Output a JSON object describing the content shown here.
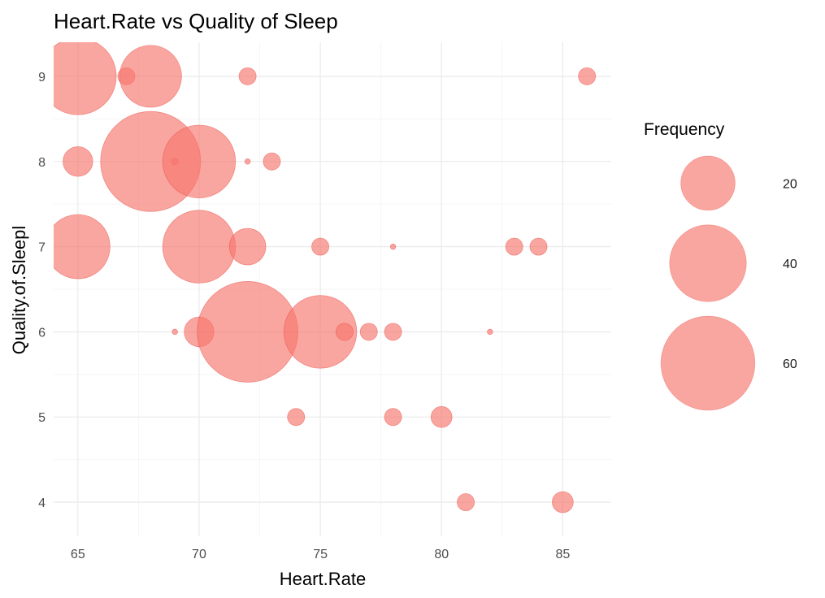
{
  "chart_data": {
    "type": "scatter",
    "subtype": "bubble",
    "title": "Heart.Rate vs Quality of Sleep",
    "xlabel": "Heart.Rate",
    "ylabel": "Quality.of.Sleepl",
    "xlim": [
      64,
      87
    ],
    "ylim": [
      3.6,
      9.4
    ],
    "x_ticks": [
      65,
      70,
      75,
      80,
      85
    ],
    "y_ticks": [
      4,
      5,
      6,
      7,
      8,
      9
    ],
    "grid": true,
    "bubble_color": "#F8766D",
    "bubble_opacity": 0.65,
    "size_scale_max": 69,
    "legend": {
      "title": "Frequency",
      "position": "right",
      "entries": [
        {
          "label": "20",
          "value": 20
        },
        {
          "label": "40",
          "value": 40
        },
        {
          "label": "60",
          "value": 60
        }
      ]
    },
    "points": [
      {
        "x": 65,
        "y": 9,
        "frequency": 40
      },
      {
        "x": 67,
        "y": 9,
        "frequency": 2
      },
      {
        "x": 68,
        "y": 9,
        "frequency": 26
      },
      {
        "x": 72,
        "y": 9,
        "frequency": 2
      },
      {
        "x": 86,
        "y": 9,
        "frequency": 2
      },
      {
        "x": 65,
        "y": 8,
        "frequency": 6
      },
      {
        "x": 68,
        "y": 8,
        "frequency": 68
      },
      {
        "x": 69,
        "y": 8,
        "frequency": 0.3
      },
      {
        "x": 70,
        "y": 8,
        "frequency": 36
      },
      {
        "x": 72,
        "y": 8,
        "frequency": 0.2
      },
      {
        "x": 73,
        "y": 8,
        "frequency": 2
      },
      {
        "x": 65,
        "y": 7,
        "frequency": 28
      },
      {
        "x": 70,
        "y": 7,
        "frequency": 36
      },
      {
        "x": 72,
        "y": 7,
        "frequency": 9
      },
      {
        "x": 75,
        "y": 7,
        "frequency": 2
      },
      {
        "x": 78,
        "y": 7,
        "frequency": 0.2
      },
      {
        "x": 83,
        "y": 7,
        "frequency": 2
      },
      {
        "x": 84,
        "y": 7,
        "frequency": 2
      },
      {
        "x": 69,
        "y": 6,
        "frequency": 0.2
      },
      {
        "x": 70,
        "y": 6,
        "frequency": 6
      },
      {
        "x": 72,
        "y": 6,
        "frequency": 69
      },
      {
        "x": 75,
        "y": 6,
        "frequency": 36
      },
      {
        "x": 76,
        "y": 6,
        "frequency": 2
      },
      {
        "x": 77,
        "y": 6,
        "frequency": 2
      },
      {
        "x": 78,
        "y": 6,
        "frequency": 2
      },
      {
        "x": 82,
        "y": 6,
        "frequency": 0.2
      },
      {
        "x": 74,
        "y": 5,
        "frequency": 2
      },
      {
        "x": 78,
        "y": 5,
        "frequency": 2
      },
      {
        "x": 80,
        "y": 5,
        "frequency": 3
      },
      {
        "x": 81,
        "y": 4,
        "frequency": 2
      },
      {
        "x": 85,
        "y": 4,
        "frequency": 3
      }
    ]
  }
}
